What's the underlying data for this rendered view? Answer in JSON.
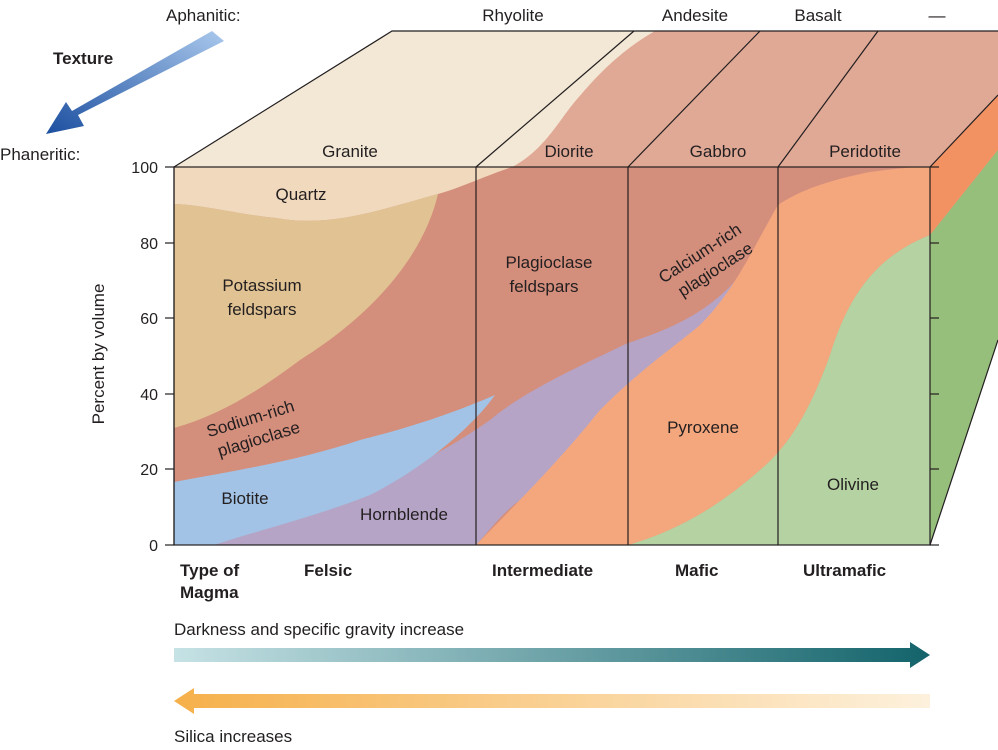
{
  "texture": {
    "aphanitic_label": "Aphanitic:",
    "phaneritic_label": "Phaneritic:",
    "texture_label": "Texture"
  },
  "volcanic_rocks": [
    "Rhyolite",
    "Andesite",
    "Basalt",
    "—"
  ],
  "plutonic_rocks": [
    "Granite",
    "Diorite",
    "Gabbro",
    "Peridotite"
  ],
  "y_axis": {
    "label": "Percent by volume",
    "ticks": [
      "0",
      "20",
      "40",
      "60",
      "80",
      "100"
    ]
  },
  "minerals": {
    "quartz": "Quartz",
    "potassium_line1": "Potassium",
    "potassium_line2": "feldspars",
    "sodium_line1": "Sodium-rich",
    "sodium_line2": "plagioclase",
    "biotite": "Biotite",
    "hornblende": "Hornblende",
    "plagioclase_line1": "Plagioclase",
    "plagioclase_line2": "feldspars",
    "calcium_line1": "Calcium-rich",
    "calcium_line2": "plagioclase",
    "pyroxene": "Pyroxene",
    "olivine": "Olivine"
  },
  "magma": {
    "type_line1": "Type of",
    "type_line2": "Magma",
    "categories": [
      "Felsic",
      "Intermediate",
      "Mafic",
      "Ultramafic"
    ]
  },
  "arrows": {
    "darkness": "Darkness and specific gravity increase",
    "silica": "Silica increases"
  },
  "colors": {
    "quartz": "#f0d9bd",
    "potassium_feldspar": "#e1c393",
    "plagioclase": "#d48e7c",
    "biotite": "#a2c3e5",
    "hornblende": "#b5a4c6",
    "pyroxene": "#f4a77d",
    "olivine": "#b5d3a2",
    "top_face": "#f3e8d6",
    "top_face_mafic": "#e0a996",
    "side_orange": "#f29262",
    "side_green": "#97bf7c",
    "texture_arrow": "#1f5fae",
    "dark_arrow": "#17666d",
    "silica_arrow": "#f6b553"
  }
}
